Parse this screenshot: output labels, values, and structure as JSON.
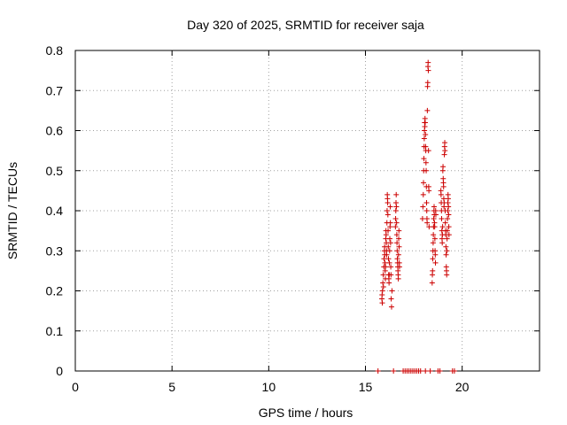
{
  "chart_data": {
    "type": "scatter",
    "title": "Day 320 of 2025, SRMTID for receiver saja",
    "xlabel": "GPS time / hours",
    "ylabel": "SRMTID / TECUs",
    "xlim": [
      0,
      24
    ],
    "ylim": [
      0,
      0.8
    ],
    "x_ticks": [
      0,
      5,
      10,
      15,
      20
    ],
    "x_tick_labels": [
      "0",
      "5",
      "10",
      "15",
      "20"
    ],
    "y_ticks": [
      0,
      0.1,
      0.2,
      0.3,
      0.4,
      0.5,
      0.6,
      0.7,
      0.8
    ],
    "y_tick_labels": [
      "0",
      "0.1",
      "0.2",
      "0.3",
      "0.4",
      "0.5",
      "0.6",
      "0.7",
      "0.8"
    ],
    "grid": true,
    "marker": "+",
    "series": [
      {
        "name": "SRMTID",
        "color": "#cc0000",
        "points": [
          [
            15.85,
            0.18
          ],
          [
            15.86,
            0.19
          ],
          [
            15.87,
            0.17
          ],
          [
            15.88,
            0.2
          ],
          [
            15.9,
            0.22
          ],
          [
            15.92,
            0.24
          ],
          [
            15.93,
            0.21
          ],
          [
            15.95,
            0.26
          ],
          [
            15.96,
            0.28
          ],
          [
            15.98,
            0.3
          ],
          [
            15.99,
            0.31
          ],
          [
            16.0,
            0.29
          ],
          [
            16.01,
            0.27
          ],
          [
            16.02,
            0.25
          ],
          [
            16.03,
            0.23
          ],
          [
            16.04,
            0.26
          ],
          [
            16.05,
            0.33
          ],
          [
            16.06,
            0.35
          ],
          [
            16.07,
            0.34
          ],
          [
            16.08,
            0.32
          ],
          [
            16.09,
            0.3
          ],
          [
            16.1,
            0.29
          ],
          [
            16.11,
            0.37
          ],
          [
            16.12,
            0.4
          ],
          [
            16.13,
            0.44
          ],
          [
            16.14,
            0.43
          ],
          [
            16.15,
            0.42
          ],
          [
            16.16,
            0.39
          ],
          [
            16.17,
            0.35
          ],
          [
            16.18,
            0.31
          ],
          [
            16.19,
            0.28
          ],
          [
            16.2,
            0.24
          ],
          [
            16.21,
            0.23
          ],
          [
            16.22,
            0.22
          ],
          [
            16.23,
            0.24
          ],
          [
            16.24,
            0.27
          ],
          [
            16.25,
            0.3
          ],
          [
            16.26,
            0.33
          ],
          [
            16.27,
            0.36
          ],
          [
            16.28,
            0.41
          ],
          [
            16.29,
            0.37
          ],
          [
            16.3,
            0.32
          ],
          [
            16.31,
            0.26
          ],
          [
            16.32,
            0.24
          ],
          [
            16.33,
            0.18
          ],
          [
            16.35,
            0.16
          ],
          [
            16.37,
            0.2
          ],
          [
            16.55,
            0.36
          ],
          [
            16.56,
            0.38
          ],
          [
            16.57,
            0.4
          ],
          [
            16.58,
            0.42
          ],
          [
            16.59,
            0.44
          ],
          [
            16.6,
            0.41
          ],
          [
            16.61,
            0.37
          ],
          [
            16.62,
            0.34
          ],
          [
            16.63,
            0.32
          ],
          [
            16.64,
            0.3
          ],
          [
            16.65,
            0.28
          ],
          [
            16.66,
            0.27
          ],
          [
            16.67,
            0.26
          ],
          [
            16.68,
            0.25
          ],
          [
            16.69,
            0.24
          ],
          [
            16.7,
            0.23
          ],
          [
            16.71,
            0.29
          ],
          [
            16.72,
            0.33
          ],
          [
            16.73,
            0.35
          ],
          [
            16.74,
            0.31
          ],
          [
            16.75,
            0.27
          ],
          [
            16.76,
            0.26
          ],
          [
            17.95,
            0.38
          ],
          [
            17.97,
            0.41
          ],
          [
            17.99,
            0.44
          ],
          [
            18.0,
            0.47
          ],
          [
            18.01,
            0.5
          ],
          [
            18.02,
            0.53
          ],
          [
            18.03,
            0.56
          ],
          [
            18.04,
            0.58
          ],
          [
            18.05,
            0.6
          ],
          [
            18.06,
            0.62
          ],
          [
            18.07,
            0.61
          ],
          [
            18.08,
            0.63
          ],
          [
            18.09,
            0.62
          ],
          [
            18.1,
            0.59
          ],
          [
            18.11,
            0.56
          ],
          [
            18.12,
            0.55
          ],
          [
            18.13,
            0.52
          ],
          [
            18.14,
            0.5
          ],
          [
            18.15,
            0.46
          ],
          [
            18.16,
            0.42
          ],
          [
            18.17,
            0.4
          ],
          [
            18.18,
            0.38
          ],
          [
            18.19,
            0.37
          ],
          [
            18.2,
            0.65
          ],
          [
            18.21,
            0.71
          ],
          [
            18.22,
            0.72
          ],
          [
            18.23,
            0.76
          ],
          [
            18.24,
            0.77
          ],
          [
            18.25,
            0.75
          ],
          [
            18.26,
            0.55
          ],
          [
            18.27,
            0.46
          ],
          [
            18.28,
            0.45
          ],
          [
            18.29,
            0.36
          ],
          [
            18.45,
            0.22
          ],
          [
            18.46,
            0.24
          ],
          [
            18.47,
            0.25
          ],
          [
            18.48,
            0.28
          ],
          [
            18.49,
            0.3
          ],
          [
            18.5,
            0.32
          ],
          [
            18.51,
            0.34
          ],
          [
            18.52,
            0.36
          ],
          [
            18.53,
            0.38
          ],
          [
            18.54,
            0.4
          ],
          [
            18.55,
            0.41
          ],
          [
            18.56,
            0.39
          ],
          [
            18.57,
            0.37
          ],
          [
            18.58,
            0.36
          ],
          [
            18.59,
            0.33
          ],
          [
            18.6,
            0.3
          ],
          [
            18.61,
            0.29
          ],
          [
            18.62,
            0.27
          ],
          [
            18.63,
            0.4
          ],
          [
            18.64,
            0.39
          ],
          [
            18.9,
            0.45
          ],
          [
            18.91,
            0.44
          ],
          [
            18.92,
            0.42
          ],
          [
            18.93,
            0.4
          ],
          [
            18.94,
            0.38
          ],
          [
            18.95,
            0.35
          ],
          [
            18.96,
            0.33
          ],
          [
            18.97,
            0.32
          ],
          [
            18.98,
            0.34
          ],
          [
            18.99,
            0.36
          ],
          [
            19.0,
            0.5
          ],
          [
            19.01,
            0.51
          ],
          [
            19.02,
            0.48
          ],
          [
            19.03,
            0.47
          ],
          [
            19.04,
            0.46
          ],
          [
            19.05,
            0.43
          ],
          [
            19.06,
            0.41
          ],
          [
            19.07,
            0.42
          ],
          [
            19.08,
            0.54
          ],
          [
            19.09,
            0.56
          ],
          [
            19.1,
            0.57
          ],
          [
            19.11,
            0.55
          ],
          [
            19.12,
            0.4
          ],
          [
            19.13,
            0.37
          ],
          [
            19.14,
            0.35
          ],
          [
            19.15,
            0.34
          ],
          [
            19.16,
            0.31
          ],
          [
            19.17,
            0.29
          ],
          [
            19.18,
            0.26
          ],
          [
            19.19,
            0.25
          ],
          [
            19.2,
            0.24
          ],
          [
            19.21,
            0.3
          ],
          [
            19.22,
            0.33
          ],
          [
            19.23,
            0.35
          ],
          [
            19.24,
            0.38
          ],
          [
            19.25,
            0.4
          ],
          [
            19.26,
            0.42
          ],
          [
            19.27,
            0.44
          ],
          [
            19.28,
            0.43
          ],
          [
            19.29,
            0.41
          ],
          [
            19.3,
            0.39
          ],
          [
            19.31,
            0.36
          ],
          [
            19.32,
            0.34
          ],
          [
            15.65,
            0
          ],
          [
            16.45,
            0
          ],
          [
            16.95,
            0
          ],
          [
            17.05,
            0
          ],
          [
            17.15,
            0
          ],
          [
            17.25,
            0
          ],
          [
            17.35,
            0
          ],
          [
            17.45,
            0
          ],
          [
            17.55,
            0
          ],
          [
            17.65,
            0
          ],
          [
            17.75,
            0
          ],
          [
            17.85,
            0
          ],
          [
            18.1,
            0
          ],
          [
            18.35,
            0
          ],
          [
            18.75,
            0
          ],
          [
            18.85,
            0
          ],
          [
            19.5,
            0
          ],
          [
            19.6,
            0
          ]
        ]
      }
    ]
  }
}
